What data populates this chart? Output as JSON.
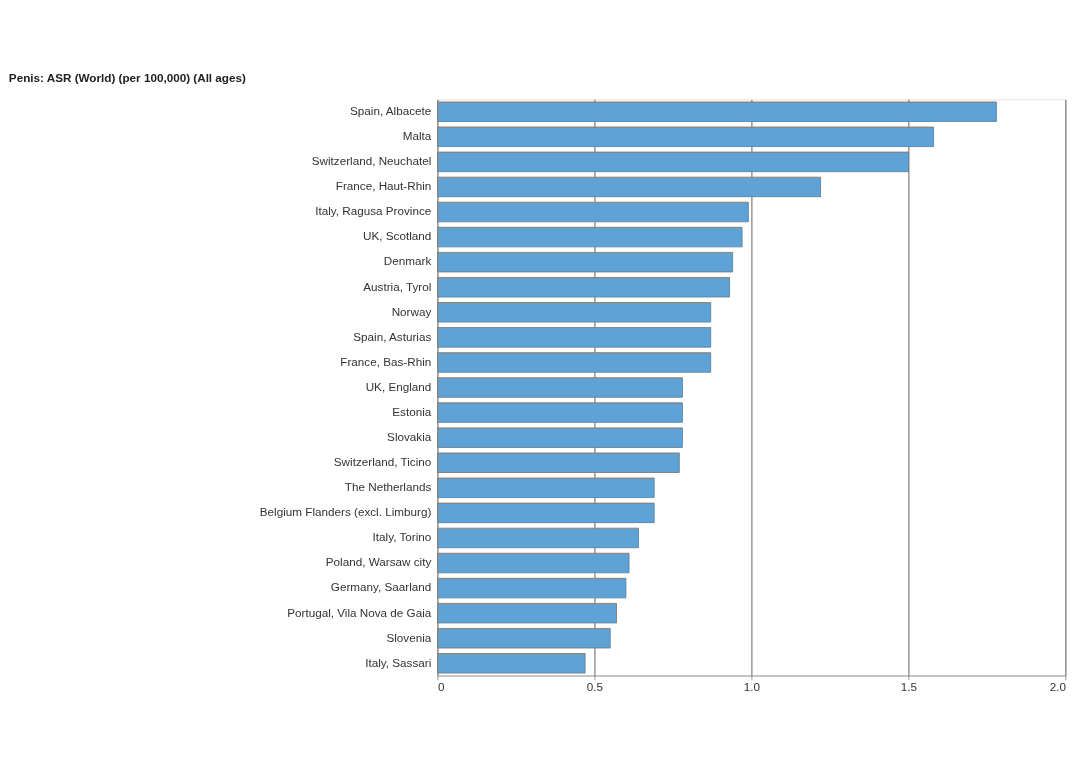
{
  "chart_data": {
    "type": "bar",
    "orientation": "horizontal",
    "title": "Penis: ASR (World) (per 100,000) (All ages)",
    "categories": [
      "Spain, Albacete",
      "Malta",
      "Switzerland, Neuchatel",
      "France, Haut-Rhin",
      "Italy, Ragusa Province",
      "UK, Scotland",
      "Denmark",
      "Austria, Tyrol",
      "Norway",
      "Spain, Asturias",
      "France, Bas-Rhin",
      "UK, England",
      "Estonia",
      "Slovakia",
      "Switzerland, Ticino",
      "The Netherlands",
      "Belgium Flanders (excl. Limburg)",
      "Italy, Torino",
      "Poland, Warsaw city",
      "Germany, Saarland",
      "Portugal, Vila Nova de Gaia",
      "Slovenia",
      "Italy, Sassari"
    ],
    "values": [
      1.78,
      1.58,
      1.5,
      1.22,
      0.99,
      0.97,
      0.94,
      0.93,
      0.87,
      0.87,
      0.87,
      0.78,
      0.78,
      0.78,
      0.77,
      0.69,
      0.69,
      0.64,
      0.61,
      0.6,
      0.57,
      0.55,
      0.47
    ],
    "color": "#5fa3d6",
    "xlim": [
      0,
      2.0
    ],
    "xticks": [
      0,
      0.5,
      {
        "value": 1.0,
        "label": "1.0"
      },
      1.5,
      {
        "value": 2.0,
        "label": "2.0"
      }
    ],
    "grid": "x"
  }
}
